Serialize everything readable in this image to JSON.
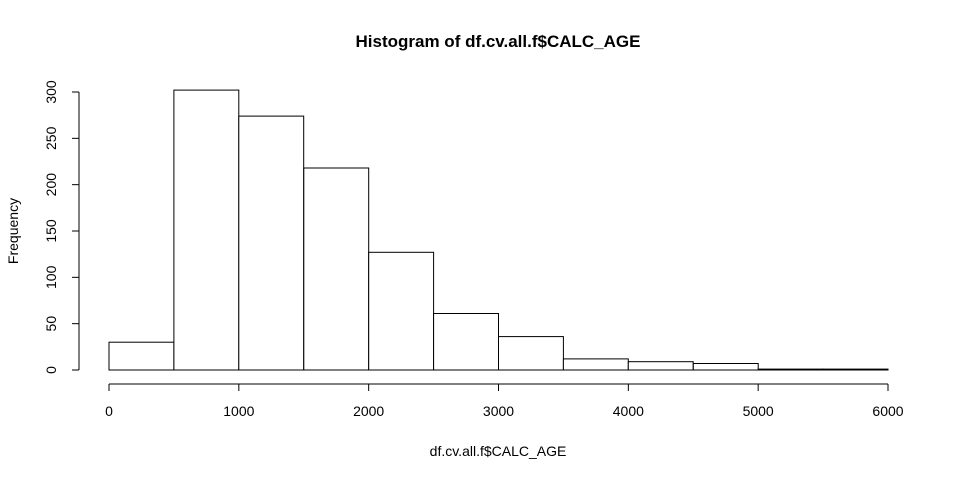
{
  "chart_data": {
    "type": "bar",
    "title": "Histogram of df.cv.all.f$CALC_AGE",
    "xlabel": "df.cv.all.f$CALC_AGE",
    "ylabel": "Frequency",
    "bins": [
      {
        "from": 0,
        "to": 500,
        "count": 30
      },
      {
        "from": 500,
        "to": 1000,
        "count": 302
      },
      {
        "from": 1000,
        "to": 1500,
        "count": 274
      },
      {
        "from": 1500,
        "to": 2000,
        "count": 218
      },
      {
        "from": 2000,
        "to": 2500,
        "count": 127
      },
      {
        "from": 2500,
        "to": 3000,
        "count": 61
      },
      {
        "from": 3000,
        "to": 3500,
        "count": 36
      },
      {
        "from": 3500,
        "to": 4000,
        "count": 12
      },
      {
        "from": 4000,
        "to": 4500,
        "count": 9
      },
      {
        "from": 4500,
        "to": 5000,
        "count": 7
      },
      {
        "from": 5000,
        "to": 5500,
        "count": 1
      },
      {
        "from": 5500,
        "to": 6000,
        "count": 1
      }
    ],
    "xlim": [
      0,
      6000
    ],
    "ylim": [
      0,
      300
    ],
    "x_ticks": [
      0,
      1000,
      2000,
      3000,
      4000,
      5000,
      6000
    ],
    "x_tick_labels": [
      "0",
      "1000",
      "2000",
      "3000",
      "4000",
      "5000",
      "6000"
    ],
    "y_ticks": [
      0,
      50,
      100,
      150,
      200,
      250,
      300
    ],
    "y_tick_labels": [
      "0",
      "50",
      "100",
      "150",
      "200",
      "250",
      "300"
    ],
    "grid": false,
    "legend": "none"
  }
}
